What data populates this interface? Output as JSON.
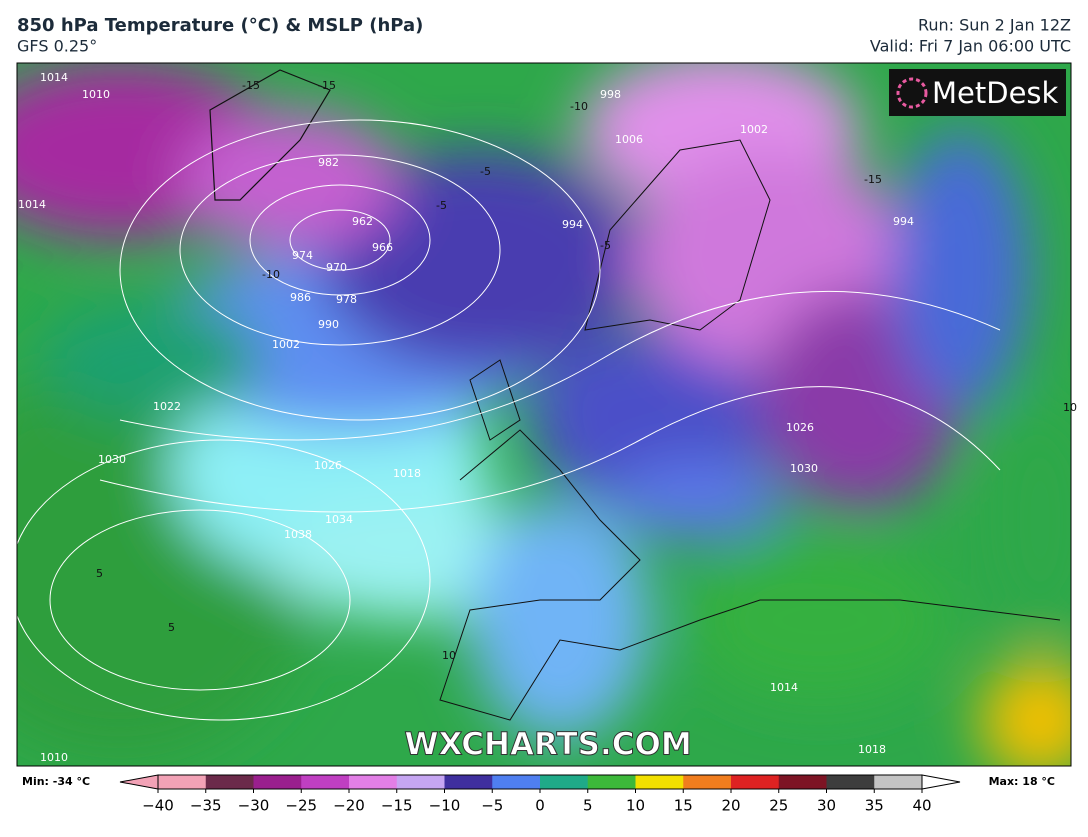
{
  "header": {
    "title": "850 hPa Temperature (°C) & MSLP (hPa)",
    "subtitle": "GFS 0.25°",
    "run": "Run: Sun 2 Jan 12Z",
    "valid": "Valid: Fri 7 Jan 06:00 UTC"
  },
  "map": {
    "logo": "MetDesk",
    "watermark": "WXCHARTS.COM",
    "isobar_labels": [
      "1014",
      "1010",
      "998",
      "1006",
      "1002",
      "994",
      "994",
      "982",
      "962",
      "966",
      "970",
      "974",
      "978",
      "986",
      "990",
      "1002",
      "1022",
      "1030",
      "1026",
      "1018",
      "1034",
      "1038",
      "1026",
      "1030",
      "1014",
      "1018",
      "1010",
      "1014"
    ],
    "temperature_labels": [
      "-15",
      "-15",
      "-10",
      "-5",
      "-5",
      "-15",
      "-10",
      "-5",
      "5",
      "5",
      "10",
      "10"
    ]
  },
  "colorbar": {
    "min_label": "Min: -34 °C",
    "max_label": "Max: 18 °C",
    "lim": [
      -40,
      40
    ],
    "ticks": [
      {
        "value": -40,
        "label": "−40"
      },
      {
        "value": -35,
        "label": "−35"
      },
      {
        "value": -30,
        "label": "−30"
      },
      {
        "value": -25,
        "label": "−25"
      },
      {
        "value": -20,
        "label": "−20"
      },
      {
        "value": -15,
        "label": "−15"
      },
      {
        "value": -10,
        "label": "−10"
      },
      {
        "value": -5,
        "label": "−5"
      },
      0,
      5,
      10,
      15,
      20,
      25,
      30,
      35,
      40
    ],
    "colors": [
      "#f2a2b6",
      "#6b2a4a",
      "#9a1f8e",
      "#c03fc2",
      "#e27fe6",
      "#c6a6f2",
      "#3f2f9e",
      "#4f7ff0",
      "#1faa88",
      "#3cb83a",
      "#f2e000",
      "#f07d1e",
      "#de2222",
      "#7d1424",
      "#3d3d3d",
      "#c4c4c4"
    ]
  }
}
